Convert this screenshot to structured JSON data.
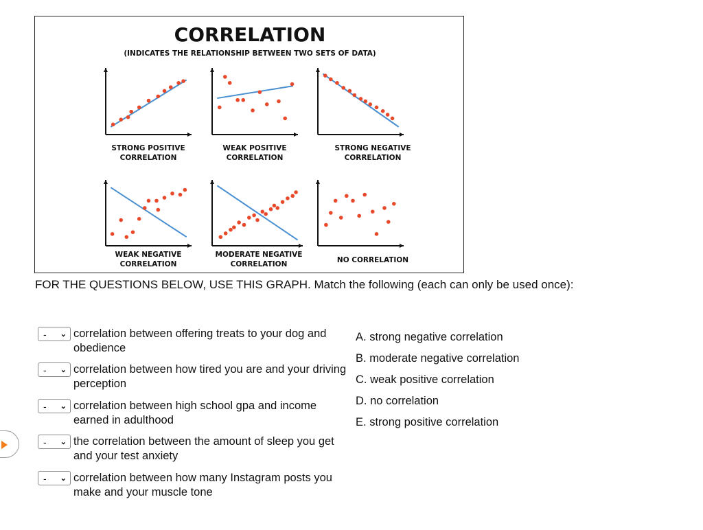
{
  "figure": {
    "title": "CORRELATION",
    "subtitle": "(INDICATES THE RELATIONSHIP BETWEEN TWO SETS OF DATA)",
    "dot_color": "#e8492a",
    "line_color": "#4a8fd0",
    "panels": [
      {
        "label": [
          "STRONG POSITIVE",
          "CORRELATION"
        ]
      },
      {
        "label": [
          "WEAK POSITIVE",
          "CORRELATION"
        ]
      },
      {
        "label": [
          "STRONG NEGATIVE",
          "CORRELATION"
        ]
      },
      {
        "label": [
          "WEAK NEGATIVE",
          "CORRELATION"
        ]
      },
      {
        "label": [
          "MODERATE NEGATIVE",
          "CORRELATION"
        ]
      },
      {
        "label": [
          "NO CORRELATION"
        ]
      }
    ]
  },
  "instructions": "FOR THE QUESTIONS BELOW, USE THIS GRAPH.  Match the following (each can only be used once):",
  "questions": [
    {
      "selected": "-",
      "text": "correlation between offering treats to your dog and obedience"
    },
    {
      "selected": "-",
      "text": "correlation between how tired you are and your driving perception"
    },
    {
      "selected": "-",
      "text": "correlation between high school gpa and income earned in adulthood"
    },
    {
      "selected": "-",
      "text": "the correlation between the amount of sleep you get and your test anxiety"
    },
    {
      "selected": "-",
      "text": "correlation between how many Instagram posts you make and your muscle tone"
    }
  ],
  "answers": [
    {
      "letter": "A.",
      "text": "strong negative correlation"
    },
    {
      "letter": "B.",
      "text": "moderate negative correlation"
    },
    {
      "letter": "C.",
      "text": "weak positive correlation"
    },
    {
      "letter": "D.",
      "text": "no correlation"
    },
    {
      "letter": "E.",
      "text": "strong positive correlation"
    }
  ],
  "side_button": {
    "icon": "play-icon",
    "color": "#f07c1a"
  }
}
